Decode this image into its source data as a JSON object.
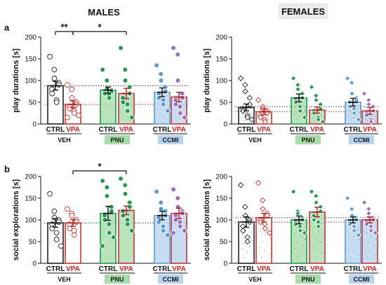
{
  "figure": {
    "headers": {
      "males": "MALES",
      "females": "FEMALES"
    },
    "row_labels": {
      "a": "a",
      "b": "b"
    }
  },
  "groups": [
    {
      "treatment": "VEH",
      "color": "#ffffff",
      "conditions": [
        "CTRL",
        "VPA"
      ]
    },
    {
      "treatment": "PNU",
      "color": "#a8dcaa",
      "conditions": [
        "CTRL",
        "VPA"
      ]
    },
    {
      "treatment": "CCMI",
      "color": "#b8d4ee",
      "conditions": [
        "CTRL",
        "VPA"
      ]
    }
  ],
  "series_colors": {
    "VEH": {
      "CTRL": "#222222",
      "VPA": "#cc3333"
    },
    "PNU": {
      "CTRL": "#1f9a4e",
      "VPA": "#1f9a4e"
    },
    "CCMI": {
      "CTRL": "#5b9bd5",
      "VPA": "#9b6fbf"
    }
  },
  "chart_data": [
    {
      "type": "bar",
      "panel": "a-males",
      "ylabel": "play durations [s]",
      "ylim": [
        0,
        200
      ],
      "yticks": [
        0,
        50,
        100,
        150,
        200
      ],
      "categories": [
        "VEH CTRL",
        "VEH VPA",
        "PNU CTRL",
        "PNU VPA",
        "CCMI CTRL",
        "CCMI VPA"
      ],
      "values": [
        88,
        45,
        78,
        70,
        73,
        62
      ],
      "errors": [
        10,
        8,
        7,
        12,
        10,
        11
      ],
      "reference_lines": [
        88,
        45
      ],
      "points": [
        [
          155,
          125,
          105,
          95,
          90,
          80,
          70,
          55,
          50
        ],
        [
          90,
          80,
          60,
          50,
          45,
          40,
          35,
          30,
          25,
          20,
          15
        ],
        [
          125,
          100,
          80,
          78,
          75,
          72,
          70,
          68,
          60
        ],
        [
          175,
          125,
          100,
          85,
          70,
          60,
          50,
          45,
          30,
          15
        ],
        [
          135,
          115,
          100,
          85,
          75,
          70,
          60,
          55,
          45,
          30
        ],
        [
          175,
          160,
          100,
          70,
          60,
          55,
          45,
          40,
          25,
          15
        ]
      ],
      "significance": [
        {
          "from": 0,
          "to": 1,
          "label": "**"
        },
        {
          "from": 1,
          "to": 3,
          "label": "*"
        }
      ]
    },
    {
      "type": "bar",
      "panel": "a-females",
      "ylabel": "play durations [s]",
      "ylim": [
        0,
        200
      ],
      "yticks": [
        0,
        50,
        100,
        150,
        200
      ],
      "categories": [
        "VEH CTRL",
        "VEH VPA",
        "PNU CTRL",
        "PNU VPA",
        "CCMI CTRL",
        "CCMI VPA"
      ],
      "values": [
        38,
        28,
        60,
        32,
        50,
        30
      ],
      "errors": [
        8,
        7,
        9,
        7,
        9,
        8
      ],
      "reference_lines": [
        40,
        28
      ],
      "points": [
        [
          105,
          90,
          75,
          60,
          45,
          35,
          30,
          20,
          15,
          10
        ],
        [
          55,
          40,
          35,
          30,
          25,
          20,
          15,
          10,
          5
        ],
        [
          105,
          90,
          80,
          70,
          60,
          55,
          50,
          40,
          30,
          15
        ],
        [
          85,
          65,
          55,
          45,
          35,
          30,
          25,
          15,
          10,
          5
        ],
        [
          105,
          95,
          70,
          60,
          55,
          50,
          40,
          35,
          25,
          10
        ],
        [
          70,
          55,
          45,
          40,
          30,
          25,
          20,
          10,
          5
        ]
      ],
      "significance": []
    },
    {
      "type": "bar",
      "panel": "b-males",
      "ylabel": "social explorations [s]",
      "ylim": [
        0,
        200
      ],
      "yticks": [
        0,
        50,
        100,
        150,
        200
      ],
      "categories": [
        "VEH CTRL",
        "VEH VPA",
        "PNU CTRL",
        "PNU VPA",
        "CCMI CTRL",
        "CCMI VPA"
      ],
      "values": [
        93,
        93,
        115,
        122,
        110,
        115
      ],
      "errors": [
        10,
        8,
        16,
        10,
        10,
        12
      ],
      "reference_lines": [
        93
      ],
      "points": [
        [
          160,
          120,
          105,
          100,
          95,
          90,
          80,
          70,
          55,
          40
        ],
        [
          125,
          115,
          110,
          100,
          95,
          90,
          80,
          75,
          65
        ],
        [
          190,
          175,
          155,
          130,
          120,
          110,
          100,
          90,
          70,
          60,
          40
        ],
        [
          195,
          180,
          160,
          140,
          130,
          120,
          110,
          100,
          90,
          75
        ],
        [
          165,
          140,
          125,
          120,
          110,
          105,
          95,
          85,
          75,
          65
        ],
        [
          170,
          150,
          130,
          120,
          115,
          110,
          100,
          95,
          85,
          75,
          70
        ]
      ],
      "significance": [
        {
          "from": 1,
          "to": 3,
          "label": "*"
        }
      ]
    },
    {
      "type": "bar",
      "panel": "b-females",
      "ylabel": "social explorations [s]",
      "ylim": [
        0,
        200
      ],
      "yticks": [
        0,
        50,
        100,
        150,
        200
      ],
      "categories": [
        "VEH CTRL",
        "VEH VPA",
        "PNU CTRL",
        "PNU VPA",
        "CCMI CTRL",
        "CCMI VPA"
      ],
      "values": [
        95,
        105,
        100,
        118,
        100,
        100
      ],
      "errors": [
        12,
        10,
        9,
        11,
        7,
        7
      ],
      "reference_lines": [
        105,
        95
      ],
      "points": [
        [
          180,
          130,
          110,
          100,
          95,
          85,
          75,
          60,
          50
        ],
        [
          185,
          145,
          125,
          115,
          110,
          100,
          95,
          90,
          80,
          70
        ],
        [
          165,
          120,
          115,
          105,
          100,
          95,
          90,
          85,
          75,
          70
        ],
        [
          165,
          155,
          140,
          130,
          120,
          110,
          100,
          95,
          85
        ],
        [
          150,
          125,
          110,
          105,
          100,
          95,
          90,
          85,
          75,
          65
        ],
        [
          140,
          125,
          115,
          105,
          100,
          95,
          90,
          85,
          75,
          70
        ]
      ],
      "significance": []
    }
  ]
}
